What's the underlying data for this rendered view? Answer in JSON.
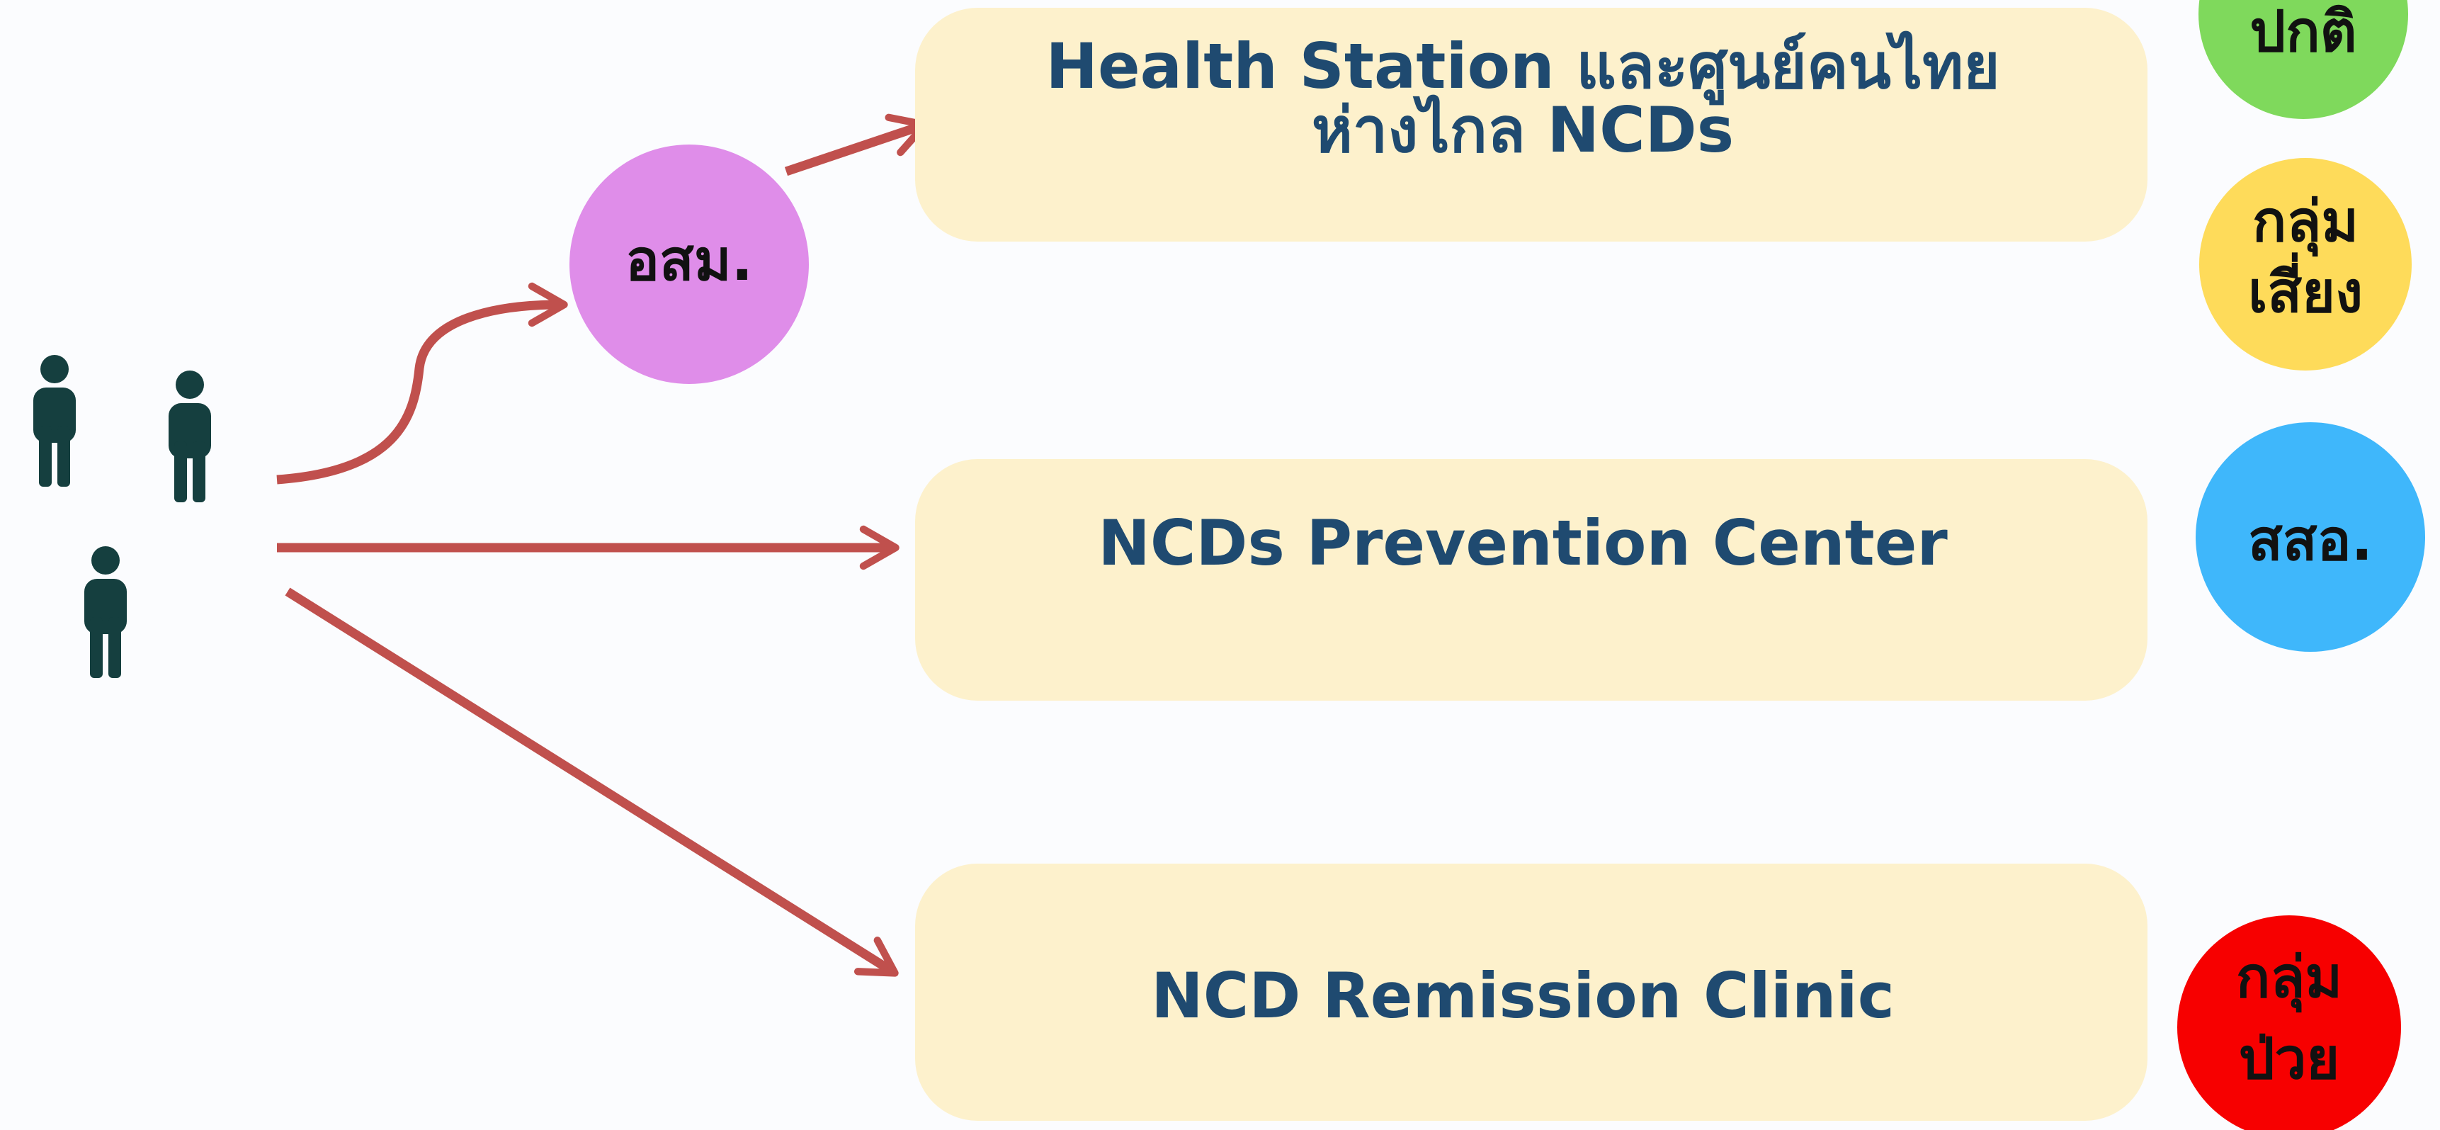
{
  "boxes": [
    {
      "lines": [
        "Health Station และศูนย์คนไทย",
        "ห่างไกล NCDs"
      ]
    },
    {
      "lines": [
        "NCDs Prevention Center"
      ]
    },
    {
      "lines": [
        "NCD Remission Clinic"
      ]
    }
  ],
  "volunteer": "อสม.",
  "badges": [
    {
      "lines": [
        "ปกติ"
      ]
    },
    {
      "lines": [
        "กลุ่ม",
        "เสี่ยง"
      ]
    },
    {
      "lines": [
        "สสอ."
      ]
    },
    {
      "lines": [
        "กลุ่ม",
        "ป่วย"
      ]
    }
  ]
}
